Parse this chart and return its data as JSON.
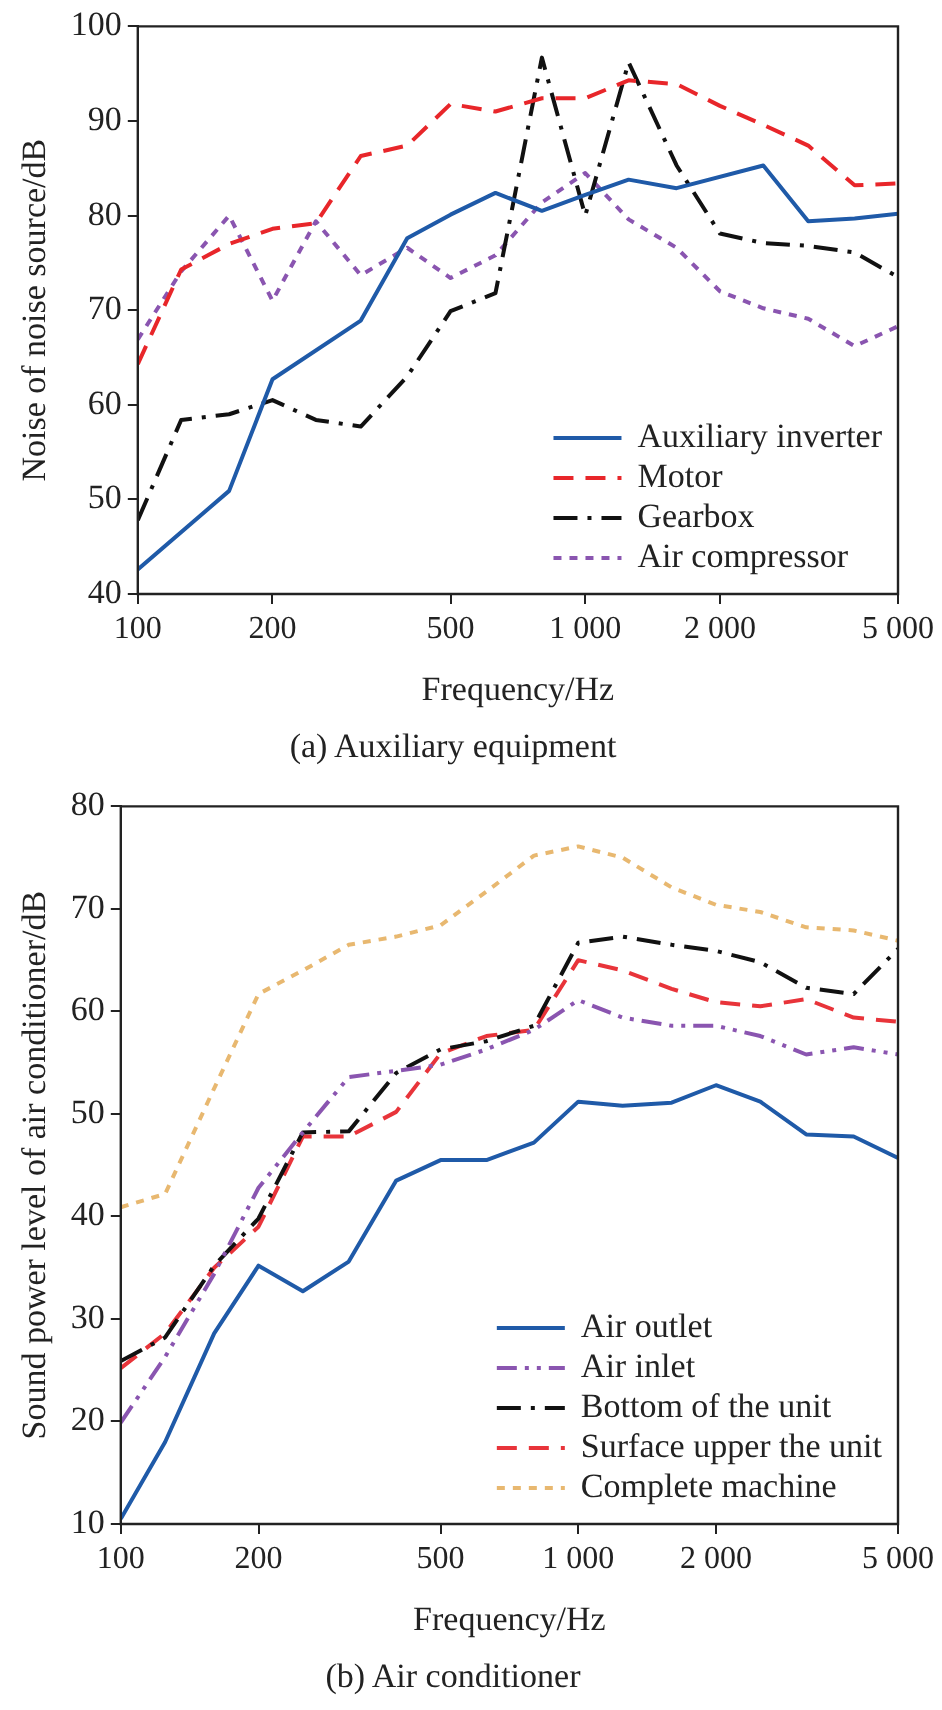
{
  "chart_data": [
    {
      "type": "line",
      "title": "(a) Auxiliary equipment",
      "xlabel": "Frequency/Hz",
      "ylabel": "Noise of noise source/dB",
      "log": "x",
      "xlim": [
        100,
        5000
      ],
      "xticks": [
        100,
        200,
        500,
        {
          "value": 1000,
          "label": "1 000"
        },
        {
          "value": 2000,
          "label": "2 000"
        },
        {
          "value": 5000,
          "label": "5 000"
        }
      ],
      "ylim": [
        40,
        100
      ],
      "yticks": [
        40,
        50,
        60,
        70,
        80,
        90,
        100
      ],
      "grid": false,
      "legend": "bottom right",
      "marker": "none",
      "x": [
        100,
        125,
        160,
        200,
        250,
        315,
        400,
        500,
        630,
        800,
        1000,
        1250,
        1600,
        2000,
        2500,
        3150,
        4000,
        5000
      ],
      "series": [
        {
          "name": "Auxiliary inverter",
          "color": "#1f5aa8",
          "line_style": "solid",
          "x": [
            100,
            160,
            200,
            315,
            400,
            500,
            630,
            800,
            1000,
            1250,
            1600,
            2500,
            3150,
            4000,
            5000
          ],
          "values": [
            42.6,
            50.9,
            62.7,
            68.9,
            77.6,
            80.1,
            82.4,
            80.5,
            82.2,
            83.8,
            82.9,
            85.3,
            79.4,
            79.7,
            80.2
          ]
        },
        {
          "name": "Motor",
          "color": "#e8262a",
          "line_style": "dashed",
          "values": [
            64.3,
            74.3,
            77,
            78.6,
            79.2,
            86.3,
            87.4,
            91.8,
            91,
            92.4,
            92.4,
            94.3,
            93.9,
            91.6,
            89.6,
            87.4,
            83.2,
            83.4
          ]
        },
        {
          "name": "Gearbox",
          "color": "#111111",
          "line_style": "dashdot",
          "values": [
            47.8,
            58.4,
            59,
            60.5,
            58.4,
            57.7,
            63,
            69.9,
            71.8,
            96.7,
            80,
            96.2,
            85.3,
            78.1,
            77.1,
            76.8,
            76.1,
            73.5
          ]
        },
        {
          "name": "Air compressor",
          "color": "#8a55b0",
          "line_style": "dotted",
          "values": [
            66.9,
            74.1,
            80,
            71,
            79.4,
            73.7,
            76.6,
            73.4,
            75.8,
            81.4,
            84.5,
            79.6,
            76.6,
            72,
            70.2,
            69.1,
            66.2,
            68.3
          ]
        }
      ]
    },
    {
      "type": "line",
      "title": "(b) Air conditioner",
      "xlabel": "Frequency/Hz",
      "ylabel": "Sound power level of air conditioner/dB",
      "log": "x",
      "xlim": [
        100,
        5000
      ],
      "xticks": [
        100,
        200,
        500,
        {
          "value": 1000,
          "label": "1 000"
        },
        {
          "value": 2000,
          "label": "2 000"
        },
        {
          "value": 5000,
          "label": "5 000"
        }
      ],
      "ylim": [
        10,
        80
      ],
      "yticks": [
        10,
        20,
        30,
        40,
        50,
        60,
        70,
        80
      ],
      "grid": false,
      "legend": "bottom right",
      "marker": "none",
      "x": [
        100,
        125,
        160,
        200,
        250,
        315,
        400,
        500,
        630,
        800,
        1000,
        1250,
        1600,
        2000,
        2500,
        3150,
        4000,
        5000
      ],
      "series": [
        {
          "name": "Air outlet",
          "color": "#1f5aa8",
          "line_style": "solid",
          "values": [
            10.5,
            18,
            28.6,
            35.2,
            32.7,
            35.6,
            43.5,
            45.5,
            45.5,
            47.2,
            51.2,
            50.8,
            51.1,
            52.8,
            51.2,
            48,
            47.8,
            45.7
          ]
        },
        {
          "name": "Air inlet",
          "color": "#8a55b0",
          "line_style": "dashdotdot",
          "values": [
            19.9,
            26.3,
            34.4,
            42.8,
            48.2,
            53.6,
            54.2,
            54.8,
            56.3,
            58.2,
            61.1,
            59.4,
            58.6,
            58.6,
            57.6,
            55.8,
            56.5,
            55.8
          ]
        },
        {
          "name": "Bottom of the unit",
          "color": "#111111",
          "line_style": "dashdot",
          "values": [
            25.9,
            28.2,
            35.2,
            39.8,
            48.2,
            48.3,
            54,
            56.3,
            57.1,
            58.6,
            66.7,
            67.3,
            66.5,
            65.9,
            64.8,
            62.3,
            61.7,
            66.1
          ]
        },
        {
          "name": "Surface upper the unit",
          "color": "#e8343a",
          "line_style": "dashed",
          "values": [
            25.2,
            28.6,
            35,
            39,
            47.8,
            47.8,
            50.2,
            55.9,
            57.6,
            58.2,
            65,
            64,
            62.2,
            60.9,
            60.5,
            61.2,
            59.4,
            59
          ]
        },
        {
          "name": "Complete machine",
          "color": "#e8b870",
          "line_style": "dotted",
          "values": [
            40.9,
            42.2,
            52.5,
            61.7,
            64,
            66.5,
            67.3,
            68.4,
            71.7,
            75.2,
            76.1,
            75,
            72.1,
            70.4,
            69.7,
            68.2,
            67.9,
            66.9
          ]
        }
      ]
    }
  ]
}
